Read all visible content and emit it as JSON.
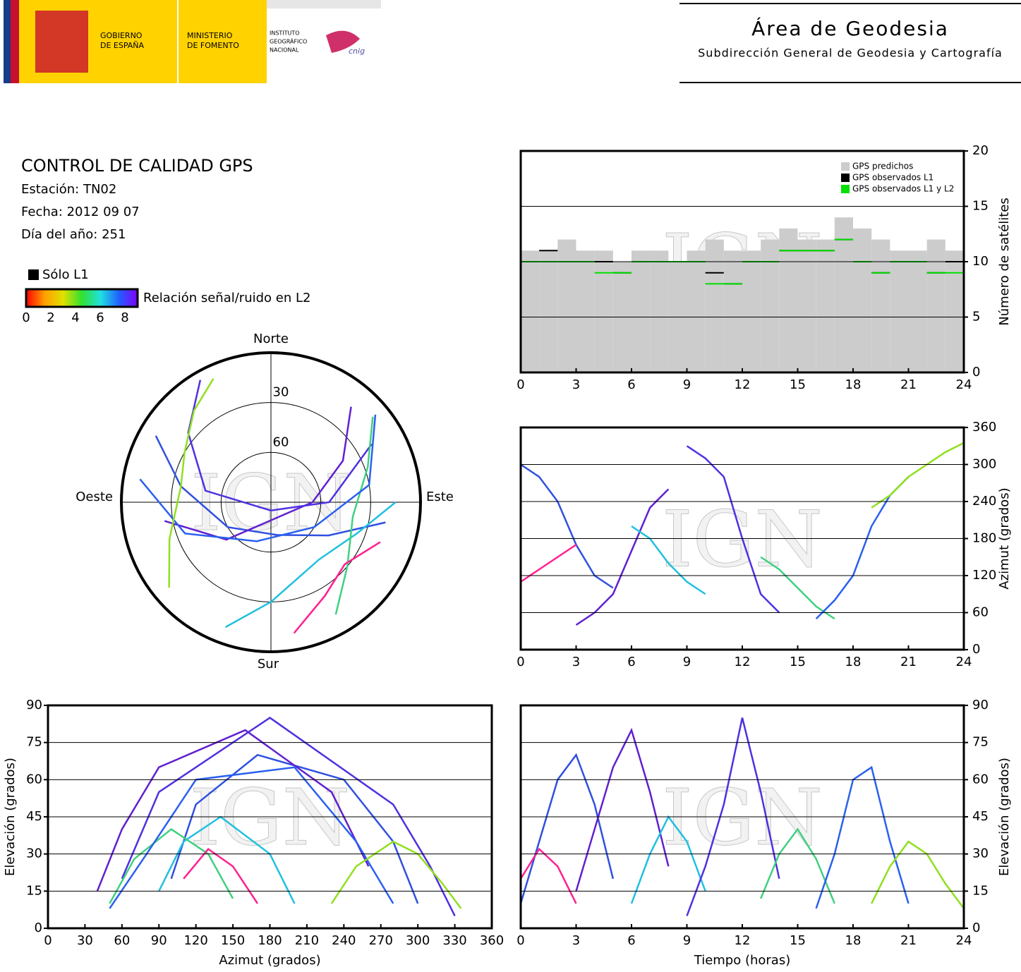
{
  "header": {
    "gobierno": [
      "GOBIERNO",
      "DE ESPAÑA"
    ],
    "ministerio": [
      "MINISTERIO",
      "DE FOMENTO"
    ],
    "ign": [
      "INSTITUTO",
      "GEOGRÁFICO",
      "NACIONAL"
    ],
    "cnig": "cnig",
    "title": "Área de Geodesia",
    "subtitle": "Subdirección General de Geodesia y Cartografía"
  },
  "info": {
    "title": "CONTROL DE CALIDAD GPS",
    "station": "Estación: TN02",
    "date": "Fecha: 2012 09 07",
    "doy": "Día del año: 251",
    "legend_l1": "Sólo L1",
    "colorbar_label": "Relación señal/ruido en L2",
    "colorbar_ticks": [
      0,
      2,
      4,
      6,
      8
    ],
    "colorbar_colors": [
      "#ff0000",
      "#ffa000",
      "#e0e000",
      "#30e030",
      "#20e0e0",
      "#2060ff",
      "#8000ff"
    ]
  },
  "watermark": "IGN",
  "satellites": [
    {
      "color": "#3050e0",
      "hours": [
        0,
        1,
        2,
        3,
        4,
        5
      ],
      "azimuth": [
        300,
        280,
        240,
        170,
        120,
        100
      ],
      "elevation": [
        10,
        35,
        60,
        70,
        50,
        20
      ]
    },
    {
      "color": "#6020d0",
      "hours": [
        3,
        4,
        5,
        6,
        7,
        8
      ],
      "azimuth": [
        40,
        60,
        90,
        160,
        230,
        260
      ],
      "elevation": [
        15,
        40,
        65,
        80,
        55,
        25
      ]
    },
    {
      "color": "#20c0e0",
      "hours": [
        6,
        7,
        8,
        9,
        10
      ],
      "azimuth": [
        200,
        180,
        140,
        110,
        90
      ],
      "elevation": [
        10,
        30,
        45,
        35,
        15
      ]
    },
    {
      "color": "#5030e0",
      "hours": [
        9,
        10,
        11,
        12,
        13,
        14
      ],
      "azimuth": [
        330,
        310,
        280,
        180,
        90,
        60
      ],
      "elevation": [
        5,
        25,
        50,
        85,
        55,
        20
      ]
    },
    {
      "color": "#40d080",
      "hours": [
        13,
        14,
        15,
        16,
        17
      ],
      "azimuth": [
        150,
        130,
        100,
        70,
        50
      ],
      "elevation": [
        12,
        30,
        40,
        28,
        10
      ]
    },
    {
      "color": "#2a60f0",
      "hours": [
        16,
        17,
        18,
        19,
        20,
        21
      ],
      "azimuth": [
        50,
        80,
        120,
        200,
        250,
        280
      ],
      "elevation": [
        8,
        30,
        60,
        65,
        35,
        10
      ]
    },
    {
      "color": "#90e020",
      "hours": [
        19,
        20,
        21,
        22,
        23,
        24
      ],
      "azimuth": [
        230,
        250,
        280,
        300,
        320,
        335
      ],
      "elevation": [
        10,
        25,
        35,
        30,
        18,
        8
      ]
    },
    {
      "color": "#ff2090",
      "hours": [
        0,
        1,
        2,
        3
      ],
      "azimuth": [
        110,
        130,
        150,
        170
      ],
      "elevation": [
        20,
        32,
        25,
        10
      ]
    }
  ],
  "chart_data": [
    {
      "type": "step",
      "ylabel": "Número de satélites",
      "yaxis": "right",
      "grid": true,
      "legend": "upper right",
      "x": [
        0,
        1,
        2,
        3,
        4,
        5,
        6,
        7,
        8,
        9,
        10,
        11,
        12,
        13,
        14,
        15,
        16,
        17,
        18,
        19,
        20,
        21,
        22,
        23,
        24
      ],
      "xlim": [
        0,
        24
      ],
      "xticks": [
        0,
        3,
        6,
        9,
        12,
        15,
        18,
        21,
        24
      ],
      "ylim": [
        0,
        20
      ],
      "yticks": [
        0,
        5,
        10,
        15,
        20
      ],
      "series": [
        {
          "name": "GPS predichos",
          "color": "#cccccc",
          "values": [
            11,
            11,
            12,
            11,
            11,
            10,
            11,
            11,
            10,
            11,
            12,
            11,
            11,
            12,
            13,
            12,
            12,
            14,
            13,
            12,
            11,
            11,
            12,
            11,
            11
          ]
        },
        {
          "name": "GPS observados L1",
          "color": "#000000",
          "values": [
            10,
            11,
            10,
            10,
            10,
            9,
            10,
            10,
            10,
            10,
            9,
            8,
            10,
            10,
            11,
            11,
            11,
            12,
            10,
            9,
            10,
            10,
            9,
            10,
            10
          ]
        },
        {
          "name": "GPS observados L1 y L2",
          "color": "#00e000",
          "values": [
            10,
            10,
            10,
            10,
            9,
            9,
            10,
            10,
            10,
            10,
            8,
            8,
            10,
            10,
            11,
            11,
            11,
            12,
            10,
            9,
            10,
            10,
            9,
            9,
            10
          ]
        }
      ]
    },
    {
      "type": "skyplot",
      "north": "Norte",
      "south": "Sur",
      "east": "Este",
      "west": "Oeste",
      "rticks": [
        30,
        60
      ]
    },
    {
      "type": "azimuthplot",
      "ylabel": "Azimut (grados)",
      "yaxis": "right",
      "grid": true,
      "xlim": [
        0,
        24
      ],
      "xticks": [
        0,
        3,
        6,
        9,
        12,
        15,
        18,
        21,
        24
      ],
      "ylim": [
        0,
        360
      ],
      "yticks": [
        0,
        60,
        120,
        180,
        240,
        300,
        360
      ]
    },
    {
      "type": "elevationplot",
      "xlabel": "Azimut (grados)",
      "ylabel": "Elevación (grados)",
      "yaxis": "left",
      "grid": true,
      "xlim": [
        0,
        360
      ],
      "xticks": [
        0,
        30,
        60,
        90,
        120,
        150,
        180,
        210,
        240,
        270,
        300,
        330,
        360
      ],
      "ylim": [
        0,
        90
      ],
      "yticks": [
        0,
        15,
        30,
        45,
        60,
        75,
        90
      ]
    },
    {
      "type": "timeplot",
      "xlabel": "Tiempo (horas)",
      "ylabel": "Elevación (grados)",
      "yaxis": "right",
      "grid": true,
      "xlim": [
        0,
        24
      ],
      "xticks": [
        0,
        3,
        6,
        9,
        12,
        15,
        18,
        21,
        24
      ],
      "ylim": [
        0,
        90
      ],
      "yticks": [
        0,
        15,
        30,
        45,
        60,
        75,
        90
      ]
    }
  ]
}
